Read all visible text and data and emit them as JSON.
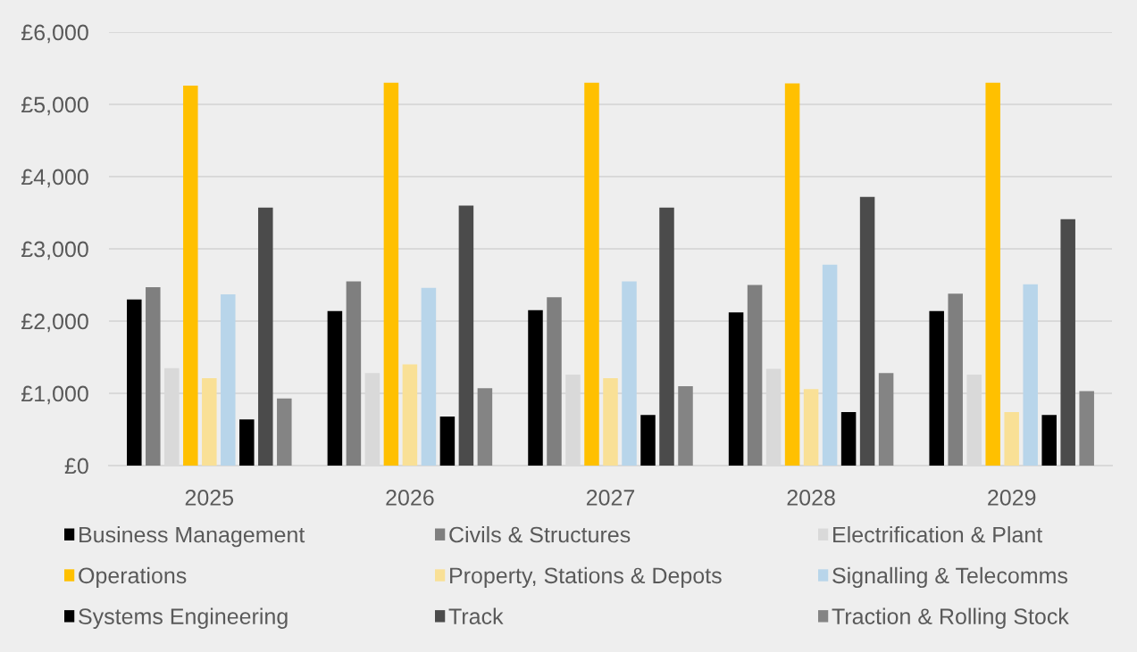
{
  "chart_data": {
    "type": "bar",
    "categories": [
      "2025",
      "2026",
      "2027",
      "2028",
      "2029"
    ],
    "series": [
      {
        "name": "Business Management",
        "color": "#000000",
        "values": [
          2300,
          2140,
          2150,
          2120,
          2140
        ]
      },
      {
        "name": "Civils & Structures",
        "color": "#7f7f7f",
        "values": [
          2470,
          2550,
          2330,
          2500,
          2380
        ]
      },
      {
        "name": "Electrification & Plant",
        "color": "#d9d9d9",
        "values": [
          1350,
          1280,
          1260,
          1340,
          1260
        ]
      },
      {
        "name": "Operations",
        "color": "#ffc000",
        "values": [
          5260,
          5300,
          5300,
          5290,
          5300
        ]
      },
      {
        "name": "Property, Stations & Depots",
        "color": "#f9e096",
        "values": [
          1210,
          1400,
          1210,
          1060,
          740
        ]
      },
      {
        "name": "Signalling & Telecomms",
        "color": "#b8d5ea",
        "values": [
          2370,
          2460,
          2550,
          2780,
          2510
        ]
      },
      {
        "name": "Systems Engineering",
        "color": "#000000",
        "values": [
          640,
          680,
          700,
          740,
          700
        ]
      },
      {
        "name": "Track",
        "color": "#4b4b4b",
        "values": [
          3570,
          3600,
          3570,
          3720,
          3410
        ]
      },
      {
        "name": "Traction & Rolling Stock",
        "color": "#848484",
        "values": [
          930,
          1070,
          1100,
          1280,
          1030
        ]
      }
    ],
    "ylim": [
      0,
      6000
    ],
    "yticks": [
      {
        "value": 0,
        "label": "£0"
      },
      {
        "value": 1000,
        "label": "£1,000"
      },
      {
        "value": 2000,
        "label": "£2,000"
      },
      {
        "value": 3000,
        "label": "£3,000"
      },
      {
        "value": 4000,
        "label": "£4,000"
      },
      {
        "value": 5000,
        "label": "£5,000"
      },
      {
        "value": 6000,
        "label": "£6,000"
      }
    ],
    "grid": "y",
    "legend": "bottom"
  }
}
